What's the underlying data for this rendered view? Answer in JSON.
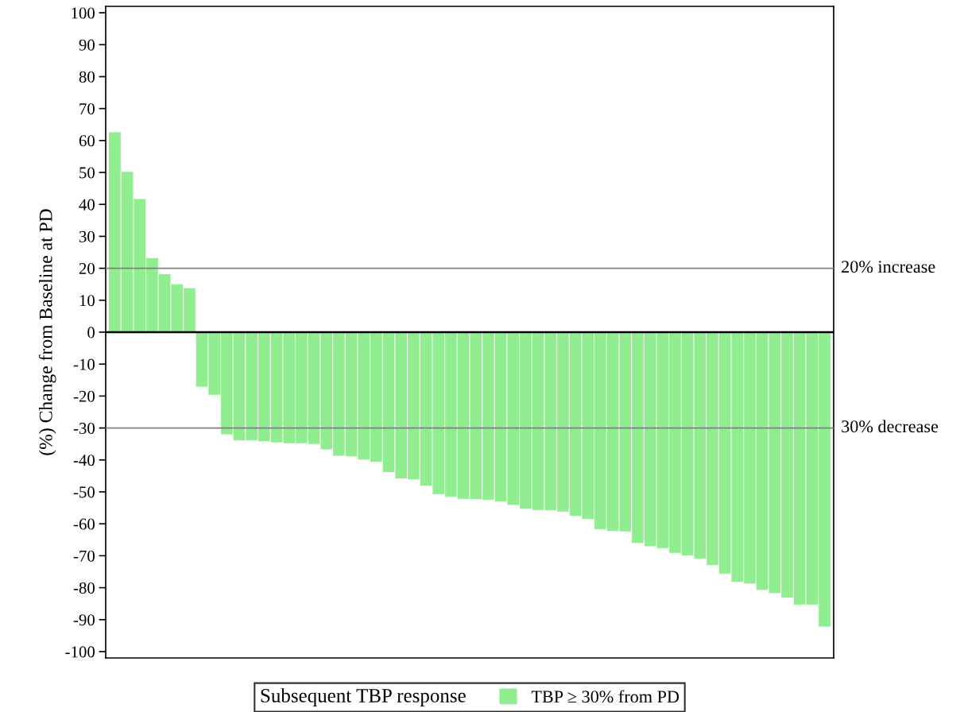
{
  "chart_data": {
    "type": "bar",
    "ylabel": "(%) Change from Baseline at PD",
    "legend_title": "Subsequent TBP response",
    "categories": [
      null,
      null,
      null,
      null,
      null,
      null,
      null,
      null,
      null,
      null,
      null,
      null,
      null,
      null,
      null,
      null,
      null,
      null,
      null,
      null,
      null,
      null,
      null,
      null,
      null,
      null,
      null,
      null,
      null,
      null,
      null,
      null,
      null,
      null,
      null,
      null,
      null,
      null,
      null,
      null,
      null,
      null,
      null,
      null,
      null,
      null,
      null,
      null,
      null,
      null,
      null,
      null,
      null,
      null,
      null,
      null,
      null,
      null
    ],
    "series": [
      {
        "name": "TBP ≥ 30% from PD",
        "color": "#90ee90",
        "values": [
          62.7,
          50.3,
          41.8,
          23.3,
          18.3,
          15.1,
          13.9,
          -17.2,
          -19.7,
          -32.1,
          -34.0,
          -34.0,
          -34.3,
          -34.6,
          -34.9,
          -34.9,
          -35.1,
          -36.8,
          -38.8,
          -39.0,
          -40.0,
          -40.7,
          -43.9,
          -45.9,
          -46.2,
          -48.2,
          -50.8,
          -51.6,
          -52.3,
          -52.4,
          -52.6,
          -53.1,
          -54.2,
          -55.4,
          -55.8,
          -55.9,
          -56.3,
          -57.6,
          -58.6,
          -61.8,
          -62.4,
          -62.5,
          -66.1,
          -67.1,
          -67.7,
          -69.2,
          -70.0,
          -71.0,
          -73.0,
          -75.7,
          -78.3,
          -78.8,
          -80.8,
          -81.8,
          -83.2,
          -85.4,
          -85.4,
          -92.3
        ]
      }
    ],
    "ylim": [
      -102,
      102
    ],
    "yticks": [
      -100,
      -90,
      -80,
      -70,
      -60,
      -50,
      -40,
      -30,
      -20,
      -10,
      0,
      10,
      20,
      30,
      40,
      50,
      60,
      70,
      80,
      90,
      100
    ],
    "ref_lines": [
      {
        "axis": "y",
        "value": 20,
        "label": "20% increase",
        "color": "#808080"
      },
      {
        "axis": "y",
        "value": -30,
        "label": "30% decrease",
        "color": "#808080"
      },
      {
        "axis": "y",
        "value": 0,
        "label": null,
        "color": "#000000"
      }
    ],
    "grid": false,
    "legend": "bottom"
  }
}
